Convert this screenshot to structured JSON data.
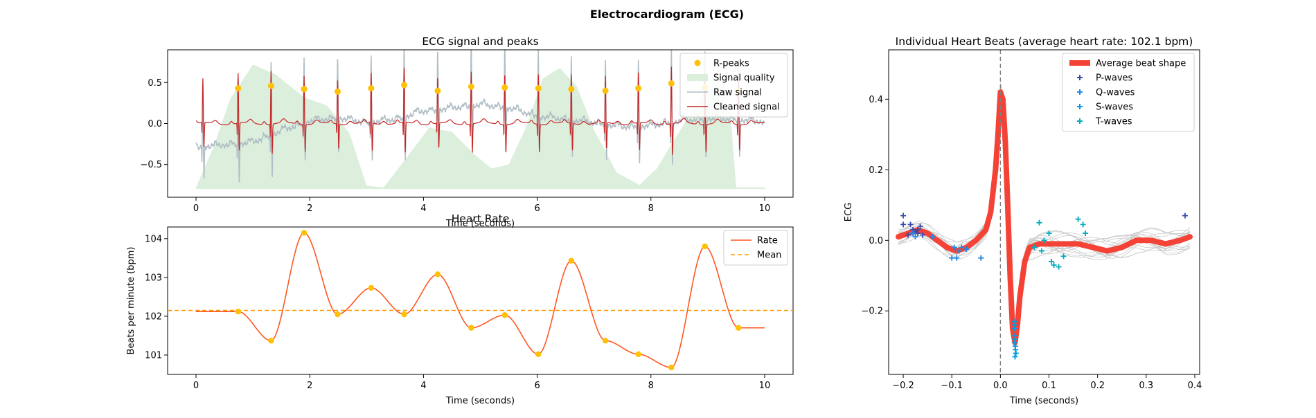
{
  "figure": {
    "title": "Electrocardiogram (ECG)"
  },
  "colors": {
    "rpeak": "#FFC107",
    "quality": "#DCEFDC",
    "raw": "#B0BEC5",
    "cleaned": "#C62828",
    "rate": "#FF5722",
    "mean": "#FF9800",
    "avg_beat": "#F44336",
    "pwave": "#3949AB",
    "qwave": "#1E88E5",
    "swave": "#039BE5",
    "twave": "#00ACC1",
    "beat_lines": "#C8C8C8"
  },
  "chart_data": [
    {
      "id": "ecg_signal",
      "type": "line",
      "title": "ECG signal and peaks",
      "xlabel": "Time (seconds)",
      "ylabel": "",
      "xlim": [
        -0.5,
        10.5
      ],
      "ylim": [
        -0.9,
        0.9
      ],
      "xticks": [
        0,
        2,
        4,
        6,
        8,
        10
      ],
      "xtick_labels": [
        "0",
        "2",
        "4",
        "6",
        "8",
        "10"
      ],
      "yticks": [
        -0.5,
        0.0,
        0.5
      ],
      "ytick_labels": [
        "−0.5",
        "0.0",
        "0.5"
      ],
      "legend": {
        "placement": "top-right",
        "entries": [
          "R-peaks",
          "Signal quality",
          "Raw signal",
          "Cleaned signal"
        ]
      },
      "rpeaks": {
        "x": [
          0.74,
          1.32,
          1.9,
          2.49,
          3.08,
          3.66,
          4.25,
          4.84,
          5.43,
          6.02,
          6.6,
          7.2,
          7.78,
          8.36,
          8.95,
          9.54
        ],
        "y": [
          0.43,
          0.46,
          0.42,
          0.39,
          0.43,
          0.47,
          0.4,
          0.45,
          0.44,
          0.43,
          0.42,
          0.4,
          0.43,
          0.49,
          0.44,
          0.4
        ]
      },
      "quality": {
        "x": [
          0,
          0.3,
          0.6,
          1.0,
          1.4,
          1.9,
          2.3,
          2.7,
          3.0,
          3.3,
          3.7,
          4.1,
          4.5,
          4.9,
          5.2,
          5.5,
          5.8,
          6.1,
          6.4,
          6.7,
          7.0,
          7.4,
          7.8,
          8.1,
          8.5,
          8.9,
          9.2,
          9.4,
          9.5,
          10.0
        ],
        "y": [
          -0.78,
          -0.3,
          0.3,
          0.72,
          0.6,
          0.32,
          0.22,
          -0.12,
          -0.76,
          -0.78,
          -0.42,
          -0.05,
          -0.1,
          -0.38,
          -0.55,
          -0.5,
          -0.05,
          0.55,
          0.68,
          0.45,
          -0.08,
          -0.6,
          -0.75,
          -0.55,
          -0.1,
          0.35,
          0.55,
          0.1,
          -0.78,
          -0.78
        ]
      },
      "raw_baseline": {
        "x": [
          0,
          0.5,
          1.0,
          1.5,
          2.0,
          2.5,
          3.0,
          3.5,
          4.0,
          4.5,
          5.0,
          5.5,
          6.0,
          6.5,
          7.0,
          7.5,
          8.0,
          8.5,
          9.0,
          9.5,
          10.0
        ],
        "y": [
          -0.3,
          -0.27,
          -0.24,
          -0.1,
          0.02,
          0.06,
          0.0,
          0.04,
          0.14,
          0.18,
          0.22,
          0.18,
          0.08,
          0.04,
          0.0,
          -0.05,
          -0.04,
          0.02,
          0.05,
          0.04,
          0.01
        ]
      },
      "cleaned_first_beat": 0.12
    },
    {
      "id": "heart_rate",
      "type": "line",
      "title": "Heart Rate",
      "xlabel": "Time (seconds)",
      "ylabel": "Beats per minute (bpm)",
      "xlim": [
        -0.5,
        10.5
      ],
      "ylim": [
        100.5,
        104.3
      ],
      "xticks": [
        0,
        2,
        4,
        6,
        8,
        10
      ],
      "xtick_labels": [
        "0",
        "2",
        "4",
        "6",
        "8",
        "10"
      ],
      "yticks": [
        101,
        102,
        103,
        104
      ],
      "ytick_labels": [
        "101",
        "102",
        "103",
        "104"
      ],
      "legend": {
        "placement": "top-right",
        "entries": [
          "Rate",
          "Mean"
        ]
      },
      "mean": 102.15,
      "points": {
        "x": [
          0.74,
          1.32,
          1.9,
          2.49,
          3.08,
          3.66,
          4.25,
          4.84,
          5.43,
          6.02,
          6.6,
          7.2,
          7.78,
          8.36,
          8.95,
          9.54
        ],
        "y": [
          102.12,
          101.37,
          104.15,
          102.05,
          102.73,
          102.05,
          103.08,
          101.7,
          102.03,
          101.02,
          103.43,
          101.37,
          101.02,
          100.68,
          103.8,
          101.7
        ]
      },
      "start_value": 102.12,
      "end_value": 101.7
    },
    {
      "id": "heart_beats",
      "type": "line",
      "title": "Individual Heart Beats (average heart rate: 102.1 bpm)",
      "xlabel": "Time (seconds)",
      "ylabel": "ECG",
      "xlim": [
        -0.23,
        0.41
      ],
      "ylim": [
        -0.38,
        0.54
      ],
      "xticks": [
        -0.2,
        -0.1,
        0.0,
        0.1,
        0.2,
        0.3,
        0.4
      ],
      "xtick_labels": [
        "−0.2",
        "−0.1",
        "0.0",
        "0.1",
        "0.2",
        "0.3",
        "0.4"
      ],
      "yticks": [
        -0.2,
        0.0,
        0.2,
        0.4
      ],
      "ytick_labels": [
        "−0.2",
        "0.0",
        "0.2",
        "0.4"
      ],
      "legend": {
        "placement": "top-right",
        "entries": [
          "Average beat shape",
          "P-waves",
          "Q-waves",
          "S-waves",
          "T-waves"
        ]
      },
      "average_beat": {
        "x": [
          -0.21,
          -0.19,
          -0.17,
          -0.15,
          -0.13,
          -0.11,
          -0.09,
          -0.07,
          -0.05,
          -0.03,
          -0.02,
          -0.01,
          -0.005,
          0.0,
          0.005,
          0.01,
          0.015,
          0.02,
          0.025,
          0.03,
          0.035,
          0.04,
          0.05,
          0.06,
          0.08,
          0.1,
          0.13,
          0.16,
          0.19,
          0.22,
          0.25,
          0.28,
          0.31,
          0.34,
          0.37,
          0.39
        ],
        "y": [
          0.01,
          0.02,
          0.03,
          0.02,
          0.0,
          -0.02,
          -0.03,
          -0.02,
          0.0,
          0.03,
          0.08,
          0.2,
          0.3,
          0.42,
          0.4,
          0.28,
          0.1,
          -0.1,
          -0.25,
          -0.29,
          -0.24,
          -0.16,
          -0.06,
          -0.02,
          -0.01,
          -0.01,
          -0.01,
          -0.01,
          -0.02,
          -0.03,
          -0.02,
          0.0,
          0.0,
          -0.01,
          0.0,
          0.01
        ]
      },
      "pwaves": {
        "x": [
          -0.2,
          -0.2,
          -0.185,
          -0.18,
          -0.175,
          -0.17,
          -0.165,
          -0.16,
          -0.19,
          -0.17
        ],
        "y": [
          0.07,
          0.045,
          0.045,
          0.03,
          0.025,
          0.02,
          0.04,
          0.015,
          0.015,
          0.03
        ]
      },
      "qwaves": {
        "x": [
          -0.18,
          -0.175,
          -0.14,
          -0.1,
          -0.095,
          -0.09,
          -0.085,
          -0.08,
          -0.07,
          -0.04
        ],
        "y": [
          0.02,
          0.01,
          0.01,
          -0.05,
          -0.02,
          -0.05,
          -0.03,
          -0.02,
          -0.025,
          -0.05
        ]
      },
      "swaves": {
        "x": [
          0.028,
          0.029,
          0.03,
          0.031,
          0.032,
          0.03,
          0.029,
          0.031,
          0.03,
          0.028
        ],
        "y": [
          -0.23,
          -0.25,
          -0.27,
          -0.3,
          -0.32,
          -0.33,
          -0.29,
          -0.31,
          -0.28,
          -0.24
        ]
      },
      "twaves": {
        "x": [
          0.08,
          0.085,
          0.1,
          0.105,
          0.11,
          0.12,
          0.13,
          0.16,
          0.17,
          0.175,
          0.07,
          0.09
        ],
        "y": [
          0.05,
          -0.03,
          0.02,
          -0.06,
          -0.07,
          -0.075,
          -0.045,
          0.06,
          0.045,
          0.02,
          -0.02,
          0.0
        ]
      },
      "outliers": {
        "x": [
          0.38
        ],
        "y": [
          0.07
        ]
      },
      "vline_x": 0.0
    }
  ]
}
